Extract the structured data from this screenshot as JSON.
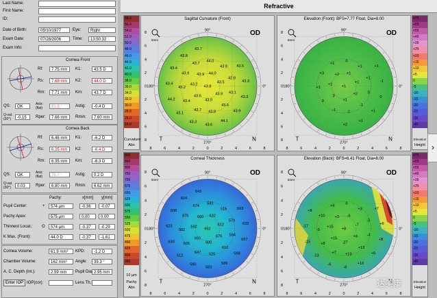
{
  "patient": {
    "last_name_label": "Last Name:",
    "first_name_label": "First Name:",
    "id_label": "ID:",
    "dob_label": "Date of Birth:",
    "dob": "05/10/1977",
    "eye_label": "Eye:",
    "eye": "Right",
    "exam_date_label": "Exam Date:",
    "exam_date": "07/28/2006",
    "time_label": "Time:",
    "time": "13:50:32",
    "exam_info_label": "Exam Info:"
  },
  "cornea_front": {
    "title": "Cornea Front",
    "rf_label": "Rf:",
    "rf": "7.75 mm",
    "k1_label": "K1:",
    "k1": "43.5 D",
    "rs_label": "Rs:",
    "rs": "7.68 mm",
    "k2_label": "K2:",
    "k2": "44.0 D",
    "rm_label": "Rm:",
    "rm": "7.71 mm",
    "km_label": "Km:",
    "km": "43.7 D",
    "qs_label": "QS:",
    "qs": "OK",
    "axis_label": "Axis: (flat)",
    "axis": "81.8 °",
    "astig_label": "Astig:",
    "astig": "-0.4 D",
    "qval_label": "Q-val. (30°)",
    "qval": "-0.15",
    "rper_label": "Rper:",
    "rper": "7.66 mm",
    "rmin_label": "Rmin:",
    "rmin": "7.60 mm"
  },
  "cornea_back": {
    "title": "Cornea Back",
    "rf_label": "Rf:",
    "rf": "6.46 mm",
    "k1_label": "K1:",
    "k1": "-6.2 D",
    "rs_label": "Rs:",
    "rs": "6.25 mm",
    "k2_label": "K2:",
    "k2": "-6.4 D",
    "rm_label": "Rm:",
    "rm": "6.35 mm",
    "km_label": "Km:",
    "km": "-6.3 D",
    "qs_label": "QS:",
    "qs": "OK",
    "axis_label": "Axis: (flat)",
    "axis": "75.7 °",
    "astig_label": "Astig:",
    "astig": "0.2 D",
    "qval_label": "Q-val. (30°)",
    "qval": "0.03",
    "rper_label": "Rper:",
    "rper": "6.80 mm",
    "rmin_label": "Rmin:",
    "rmin": "6.62 mm"
  },
  "pachy": {
    "pachy_header": "Pachy:",
    "x_header": "x[mm]",
    "y_header": "y[mm]",
    "rows": [
      {
        "label": "Pupil Center:",
        "sym": "+",
        "val": "574 µm",
        "x": "-0.36",
        "y": "-0.07"
      },
      {
        "label": "Pachy Apex:",
        "sym": "",
        "val": "575 µm",
        "x": "0.00",
        "y": "0.00"
      },
      {
        "label": "Thinnest Locat.:",
        "sym": "O",
        "val": "574 µm",
        "x": "-0.37",
        "y": "-0.29"
      },
      {
        "label": "K Max. (Front):",
        "sym": "",
        "val": "44.0 D",
        "x": "-0.37",
        "y": "-1.61"
      }
    ]
  },
  "volumes": {
    "cornea_volume_label": "Cornea Volume:",
    "cornea_volume": "61.9 mm³",
    "kpd_label": "KPD:",
    "kpd": "-1.2 D",
    "chamber_volume_label": "Chamber Volume:",
    "chamber_volume": "162 mm³",
    "angle_label": "Angle:",
    "angle": "39.3 °",
    "acd_label": "A. C. Depth (Int.):",
    "acd": "2.59 mm",
    "pupil_dia_label": "Pupil Dia:",
    "pupil_dia": "2.95 mm",
    "enter_iop": "Enter IOP",
    "iop_cor": "IOP(cor):",
    "lens_th": "Lens Th.:"
  },
  "main": {
    "title": "Refractive",
    "od": "OD",
    "maps": [
      {
        "title": "Sagittal Curvature (Front)"
      },
      {
        "title": "Elevation (Front): BFS=7.77 Float, Dia=8.00"
      },
      {
        "title": "Corneal Thickness"
      },
      {
        "title": "Elevation (Back): BFS=6.41 Float, Dia=8.00"
      }
    ],
    "axis_top": "90°",
    "axis_bottom": "270°",
    "axis_left": "180°",
    "axis_right": "0°",
    "t_label": "T",
    "n_label": "N",
    "smm": "5mm",
    "ticks": [
      "8",
      "6",
      "4",
      "2",
      "0",
      "2",
      "4",
      "6",
      "8"
    ],
    "legend_left_top": {
      "caption1": "Curvature",
      "caption2": "Abs",
      "values": [
        "58.0",
        "56.0",
        "54.0",
        "52.0",
        "50.0",
        "48.0",
        "46.0",
        "44.0",
        "42.0",
        "40.0",
        "38.0",
        "36.0",
        "34.0",
        "32.0",
        "30.0",
        "28.0",
        "26.0",
        "24.0"
      ]
    },
    "legend_left_bottom": {
      "caption1": "Pachy",
      "caption2": "Abs",
      "values": [
        "900",
        "850",
        "800",
        "750",
        "700",
        "675",
        "650",
        "625",
        "600",
        "575",
        "550",
        "525",
        "500",
        "475",
        "450",
        "425",
        "400",
        "350"
      ],
      "unit": "10 µm"
    },
    "legend_right_top": {
      "caption1": "Elevation",
      "caption2": "Height",
      "values": [
        "+75",
        "+65",
        "+55",
        "+45",
        "+35",
        "+25",
        "+20",
        "+15",
        "+10",
        "+5",
        "0",
        "-5",
        "-10",
        "-15",
        "-20",
        "-25",
        "-35",
        "-45"
      ]
    },
    "legend_right_bottom": {
      "caption1": "Elevation",
      "caption2": "Height",
      "values": [
        "+75",
        "+65",
        "+55",
        "+45",
        "+35",
        "+25",
        "+20",
        "+15",
        "+10",
        "+5",
        "0",
        "-5",
        "-10",
        "-15",
        "-20",
        "-25",
        "-35",
        "-45"
      ]
    },
    "sag_values": [
      "43.8",
      "44.0",
      "43.5",
      "43.9",
      "43.9",
      "43.6",
      "43.2",
      "43.9",
      "43.9",
      "42.8",
      "43.1",
      "43.6",
      "43.8",
      "43.7",
      "43.4",
      "43.2",
      "43.9",
      "43.7",
      "44.0",
      "43.5",
      "43.3",
      "43.3",
      "43.9",
      "44.1",
      "43.6",
      "43.3",
      "43.1",
      "44.2",
      "43.4",
      "43.4",
      "43.8",
      "43.7"
    ],
    "elev_front_values": [
      "+1",
      "+1",
      "+1",
      "+2",
      "+1",
      "0",
      "+1",
      "+2",
      "+1",
      "+1",
      "0",
      "-1",
      "-1",
      "-1",
      "0",
      "+1",
      "+3",
      "+1",
      "0",
      "+1",
      "-1",
      "0",
      "+1",
      "+1",
      "+2"
    ],
    "thick_values": [
      "652",
      "632",
      "612",
      "675",
      "600",
      "593",
      "592",
      "660",
      "615",
      "579",
      "594",
      "610",
      "625",
      "647",
      "605",
      "582",
      "575",
      "574",
      "582",
      "603",
      "633",
      "657",
      "598",
      "589",
      "583",
      "590",
      "612",
      "630",
      "623",
      "608",
      "604",
      "643"
    ],
    "elev_back_values": [
      "+8",
      "-6",
      "-7",
      "+4",
      "-27",
      "+15",
      "+15",
      "+3",
      "+3",
      "-3",
      "-4",
      "+13",
      "+13",
      "+7",
      "+8",
      "-5",
      "+10",
      "+4",
      "0",
      "+7",
      "+6",
      "+8",
      "+9",
      "+10",
      "-8",
      "-6",
      "-13",
      "-15",
      "-17",
      "+8"
    ],
    "watermark": "达美康"
  }
}
